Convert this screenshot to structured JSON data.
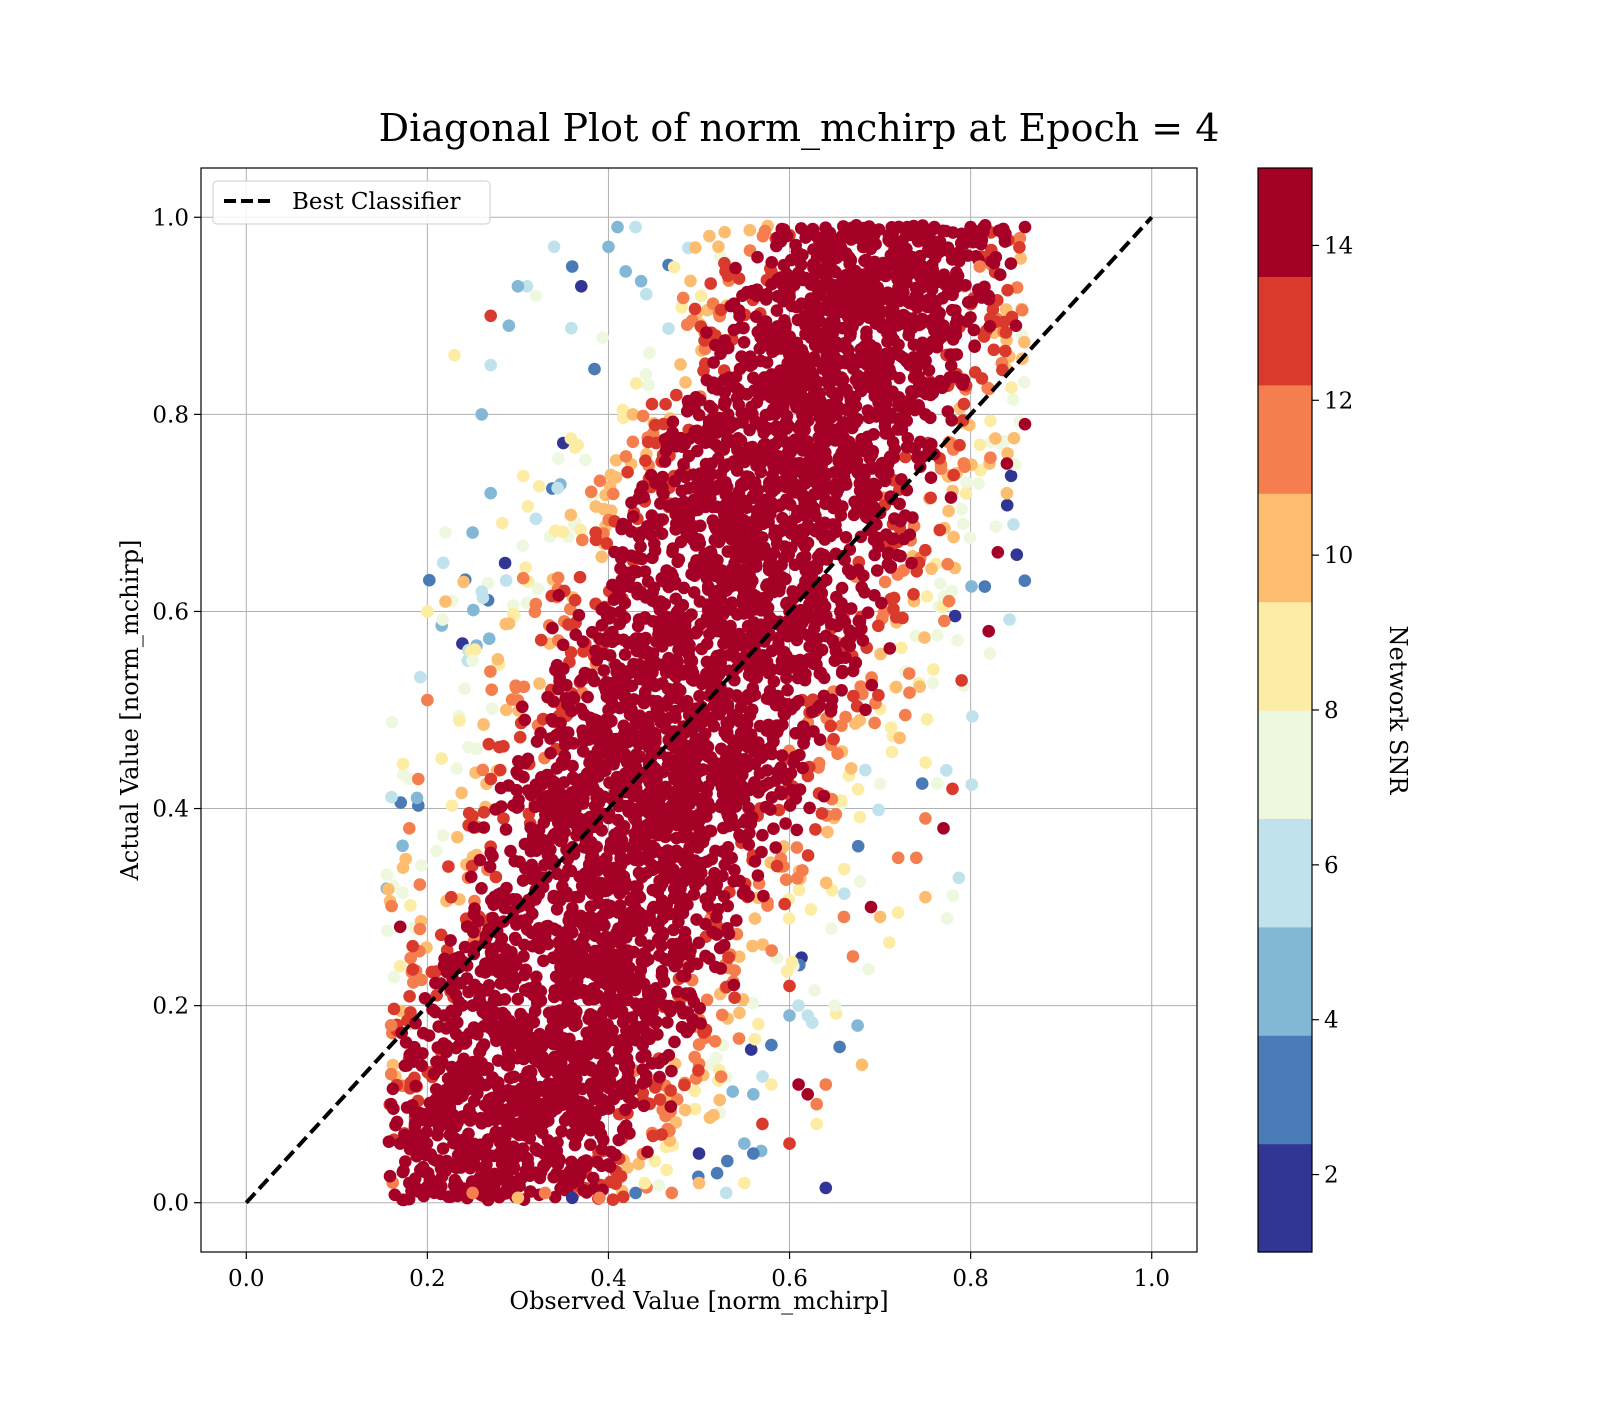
{
  "chart_data": {
    "type": "scatter",
    "title": "Diagonal Plot of norm_mchirp at Epoch = 4",
    "xlabel": "Observed Value [norm_mchirp]",
    "ylabel": "Actual Value [norm_mchirp]",
    "xlim": [
      -0.05,
      1.05
    ],
    "ylim": [
      -0.05,
      1.05
    ],
    "xticks": [
      "0.0",
      "0.2",
      "0.4",
      "0.6",
      "0.8",
      "1.0"
    ],
    "yticks": [
      "0.0",
      "0.2",
      "0.4",
      "0.6",
      "0.8",
      "1.0"
    ],
    "grid": true,
    "legend": {
      "placement": "upper-left",
      "entries": [
        "Best Classifier"
      ]
    },
    "reference_line": {
      "name": "Best Classifier",
      "style": "dashed",
      "color": "#000000",
      "x": [
        0.0,
        1.0
      ],
      "y": [
        0.0,
        1.0
      ]
    },
    "colorbar": {
      "label": "Network SNR",
      "range": [
        1,
        15
      ],
      "ticks": [
        "2",
        "4",
        "6",
        "8",
        "10",
        "12",
        "14"
      ],
      "tick_values": [
        2,
        4,
        6,
        8,
        10,
        12,
        14
      ],
      "colormap": "RdYlBu_r",
      "bins": [
        {
          "from": 1,
          "to": 2.4,
          "color": "#313695"
        },
        {
          "from": 2.4,
          "to": 3.8,
          "color": "#4a7bb7"
        },
        {
          "from": 3.8,
          "to": 5.2,
          "color": "#82b7d6"
        },
        {
          "from": 5.2,
          "to": 6.6,
          "color": "#bfe2ec"
        },
        {
          "from": 6.6,
          "to": 8.0,
          "color": "#eef8df"
        },
        {
          "from": 8.0,
          "to": 9.4,
          "color": "#fdeca3"
        },
        {
          "from": 9.4,
          "to": 10.8,
          "color": "#fdbd70"
        },
        {
          "from": 10.8,
          "to": 12.2,
          "color": "#f47e4e"
        },
        {
          "from": 12.2,
          "to": 13.6,
          "color": "#d93a2c"
        },
        {
          "from": 13.6,
          "to": 15,
          "color": "#a50026"
        }
      ]
    },
    "series": [
      {
        "marker_color_by": "Network SNR",
        "distribution": "dense cloud along diagonal; x ≈ 0.16–0.86, y ≈ 0.0–1.0; high SNR (dark red) concentrated in the core, low SNR points at upper-left and lower-right edges",
        "points": [
          [
            0.64,
            0.015,
            2
          ],
          [
            0.36,
            0.005,
            2
          ],
          [
            0.43,
            0.01,
            3
          ],
          [
            0.5,
            0.05,
            2
          ],
          [
            0.52,
            0.03,
            3
          ],
          [
            0.55,
            0.06,
            4
          ],
          [
            0.56,
            0.05,
            3
          ],
          [
            0.58,
            0.16,
            3
          ],
          [
            0.6,
            0.19,
            5
          ],
          [
            0.61,
            0.2,
            6
          ],
          [
            0.62,
            0.19,
            6
          ],
          [
            0.65,
            0.2,
            7
          ],
          [
            0.68,
            0.14,
            10
          ],
          [
            0.63,
            0.08,
            8
          ],
          [
            0.64,
            0.12,
            11
          ],
          [
            0.57,
            0.08,
            13
          ],
          [
            0.6,
            0.06,
            13
          ],
          [
            0.62,
            0.11,
            14
          ],
          [
            0.58,
            0.12,
            9
          ],
          [
            0.56,
            0.11,
            5
          ],
          [
            0.55,
            0.02,
            8
          ],
          [
            0.53,
            0.01,
            6
          ],
          [
            0.5,
            0.02,
            10
          ],
          [
            0.47,
            0.01,
            11
          ],
          [
            0.44,
            0.02,
            9
          ],
          [
            0.41,
            0.99,
            4
          ],
          [
            0.37,
            0.93,
            2
          ],
          [
            0.36,
            0.95,
            3
          ],
          [
            0.4,
            0.97,
            5
          ],
          [
            0.43,
            0.99,
            6
          ],
          [
            0.34,
            0.97,
            6
          ],
          [
            0.32,
            0.92,
            7
          ],
          [
            0.31,
            0.93,
            6
          ],
          [
            0.3,
            0.93,
            4
          ],
          [
            0.29,
            0.89,
            5
          ],
          [
            0.27,
            0.85,
            6
          ],
          [
            0.26,
            0.8,
            5
          ],
          [
            0.27,
            0.72,
            5
          ],
          [
            0.25,
            0.68,
            4
          ],
          [
            0.26,
            0.62,
            6
          ],
          [
            0.23,
            0.86,
            8
          ],
          [
            0.25,
            0.55,
            7
          ],
          [
            0.22,
            0.68,
            7
          ],
          [
            0.2,
            0.6,
            9
          ],
          [
            0.18,
            0.43,
            7
          ],
          [
            0.17,
            0.24,
            9
          ],
          [
            0.27,
            0.9,
            13
          ],
          [
            0.24,
            0.63,
            10
          ],
          [
            0.22,
            0.61,
            10
          ],
          [
            0.2,
            0.51,
            11
          ],
          [
            0.19,
            0.43,
            12
          ],
          [
            0.18,
            0.38,
            12
          ],
          [
            0.16,
            0.18,
            12
          ],
          [
            0.17,
            0.28,
            14
          ],
          [
            0.16,
            0.1,
            14
          ],
          [
            0.17,
            0.06,
            14
          ],
          [
            0.18,
            0.02,
            14
          ],
          [
            0.2,
            0.03,
            14
          ],
          [
            0.25,
            0.01,
            11
          ],
          [
            0.3,
            0.005,
            10
          ],
          [
            0.33,
            0.01,
            12
          ],
          [
            0.39,
            0.005,
            11
          ],
          [
            0.73,
            0.99,
            14
          ],
          [
            0.76,
            0.99,
            14
          ],
          [
            0.8,
            0.99,
            14
          ],
          [
            0.86,
            0.99,
            14
          ],
          [
            0.81,
            0.95,
            11
          ],
          [
            0.82,
            0.92,
            14
          ],
          [
            0.85,
            0.89,
            14
          ],
          [
            0.86,
            0.79,
            14
          ],
          [
            0.84,
            0.75,
            14
          ],
          [
            0.84,
            0.72,
            10
          ],
          [
            0.83,
            0.66,
            14
          ],
          [
            0.82,
            0.58,
            14
          ],
          [
            0.79,
            0.53,
            13
          ],
          [
            0.78,
            0.42,
            13
          ],
          [
            0.77,
            0.38,
            14
          ],
          [
            0.75,
            0.39,
            11
          ],
          [
            0.75,
            0.31,
            10
          ],
          [
            0.74,
            0.35,
            11
          ],
          [
            0.72,
            0.35,
            12
          ],
          [
            0.7,
            0.29,
            10
          ],
          [
            0.69,
            0.3,
            14
          ],
          [
            0.67,
            0.25,
            11
          ],
          [
            0.66,
            0.29,
            12
          ],
          [
            0.6,
            0.22,
            13
          ],
          [
            0.61,
            0.12,
            14
          ],
          [
            0.63,
            0.1,
            12
          ],
          [
            0.4,
            0.5,
            14
          ],
          [
            0.5,
            0.5,
            14
          ],
          [
            0.6,
            0.6,
            14
          ],
          [
            0.3,
            0.3,
            14
          ],
          [
            0.7,
            0.7,
            14
          ],
          [
            0.25,
            0.2,
            14
          ],
          [
            0.35,
            0.15,
            14
          ],
          [
            0.45,
            0.3,
            14
          ],
          [
            0.55,
            0.45,
            14
          ],
          [
            0.65,
            0.55,
            14
          ],
          [
            0.75,
            0.8,
            14
          ],
          [
            0.7,
            0.85,
            14
          ]
        ]
      }
    ]
  }
}
